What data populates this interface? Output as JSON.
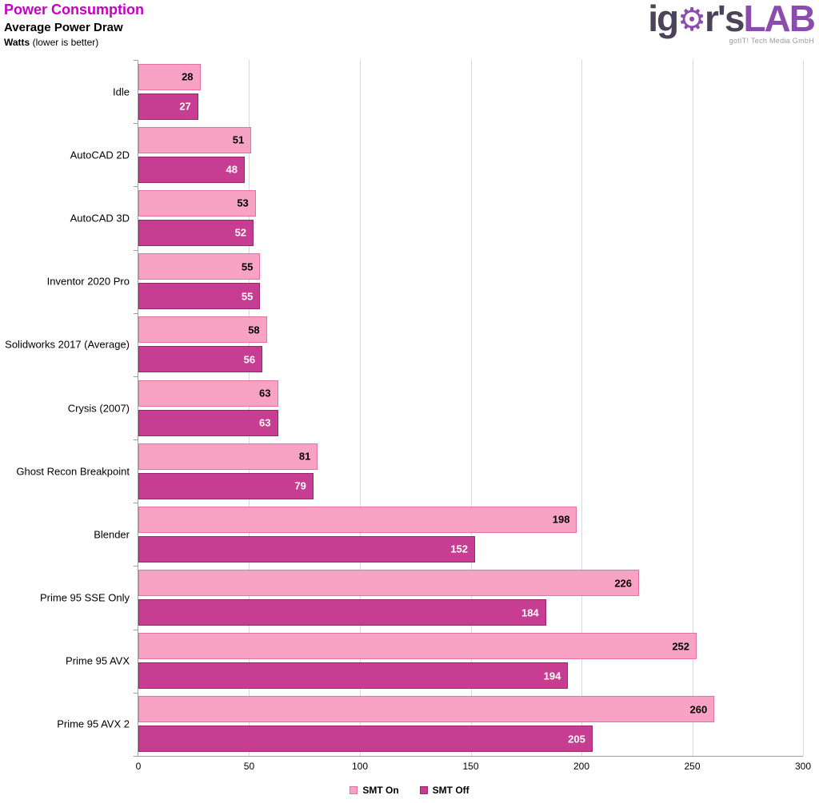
{
  "logo": {
    "text_pre": "ig",
    "gear_icon": "⚙",
    "text_mid": "r's",
    "text_lab": "LAB",
    "tagline": "gotIT! Tech Media GmbH"
  },
  "chart_data": {
    "type": "bar",
    "orientation": "horizontal",
    "title": "Power Consumption",
    "subtitle": "Average Power Draw",
    "units_label": "Watts",
    "units_note": "(lower is better)",
    "categories": [
      "Idle",
      "AutoCAD 2D",
      "AutoCAD 3D",
      "Inventor 2020 Pro",
      "Solidworks 2017 (Average)",
      "Crysis (2007)",
      "Ghost Recon Breakpoint",
      "Blender",
      "Prime 95 SSE Only",
      "Prime 95 AVX",
      "Prime 95 AVX 2"
    ],
    "series": [
      {
        "name": "SMT On",
        "color": "#F8A3C3",
        "border": "#E76EA6",
        "label_color": "#000000",
        "values": [
          28,
          51,
          53,
          55,
          58,
          63,
          81,
          198,
          226,
          252,
          260
        ]
      },
      {
        "name": "SMT Off",
        "color": "#C63D92",
        "border": "#97286C",
        "label_color": "#FFFFFF",
        "values": [
          27,
          48,
          52,
          55,
          56,
          63,
          79,
          152,
          184,
          194,
          205
        ]
      }
    ],
    "xlim": [
      0,
      300
    ],
    "xticks": [
      0,
      50,
      100,
      150,
      200,
      250,
      300
    ],
    "grid": true,
    "legend_position": "bottom",
    "accent_title_color": "#C400C4"
  }
}
